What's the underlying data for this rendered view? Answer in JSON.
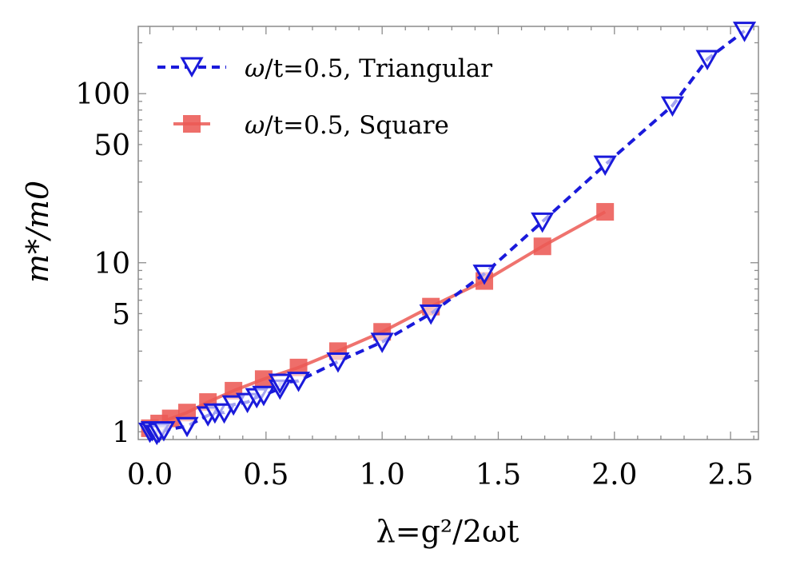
{
  "chart_data": {
    "type": "line",
    "yscale": "log",
    "xlabel": "λ=g²/2ωt",
    "ylabel": "m*/m0",
    "xlim": [
      -0.05,
      2.62
    ],
    "ylim": [
      0.9,
      250
    ],
    "x_ticks": [
      0.0,
      0.5,
      1.0,
      1.5,
      2.0,
      2.5
    ],
    "x_tick_labels": [
      "0.0",
      "0.5",
      "1.0",
      "1.5",
      "2.0",
      "2.5"
    ],
    "y_ticks": [
      1,
      5,
      10,
      50,
      100
    ],
    "y_tick_labels": [
      "1",
      "5",
      "10",
      "50",
      "100"
    ],
    "legend_position": "top-left",
    "series": [
      {
        "name": "ω/t=0.5, Triangular",
        "legend_prefix": "ω",
        "legend_suffix": "/t=0.5, Triangular",
        "color": "#1a1adb",
        "line_style": "dashed",
        "marker": "open-down-triangle",
        "points": [
          [
            0.0,
            1.0
          ],
          [
            0.01,
            1.02
          ],
          [
            0.03,
            0.97
          ],
          [
            0.04,
            1.0
          ],
          [
            0.06,
            1.02
          ],
          [
            0.16,
            1.08
          ],
          [
            0.25,
            1.25
          ],
          [
            0.28,
            1.3
          ],
          [
            0.32,
            1.3
          ],
          [
            0.36,
            1.45
          ],
          [
            0.42,
            1.5
          ],
          [
            0.46,
            1.6
          ],
          [
            0.49,
            1.65
          ],
          [
            0.56,
            1.8
          ],
          [
            0.56,
            1.95
          ],
          [
            0.64,
            2.0
          ],
          [
            0.81,
            2.6
          ],
          [
            1.0,
            3.4
          ],
          [
            1.21,
            5.0
          ],
          [
            1.44,
            8.6
          ],
          [
            1.69,
            17.5
          ],
          [
            1.96,
            38.0
          ],
          [
            2.25,
            85.0
          ],
          [
            2.4,
            160.0
          ],
          [
            2.56,
            235.0
          ]
        ]
      },
      {
        "name": "ω/t=0.5, Square",
        "legend_prefix": "ω",
        "legend_suffix": "/t=0.5, Square",
        "color": "#ec5a55",
        "line_style": "solid",
        "marker": "filled-square",
        "points": [
          [
            0.0,
            1.05
          ],
          [
            0.04,
            1.12
          ],
          [
            0.09,
            1.2
          ],
          [
            0.16,
            1.3
          ],
          [
            0.25,
            1.5
          ],
          [
            0.36,
            1.75
          ],
          [
            0.49,
            2.05
          ],
          [
            0.64,
            2.4
          ],
          [
            0.81,
            3.0
          ],
          [
            1.0,
            3.9
          ],
          [
            1.21,
            5.5
          ],
          [
            1.44,
            7.8
          ],
          [
            1.69,
            12.5
          ],
          [
            1.96,
            20.0
          ]
        ]
      }
    ]
  }
}
